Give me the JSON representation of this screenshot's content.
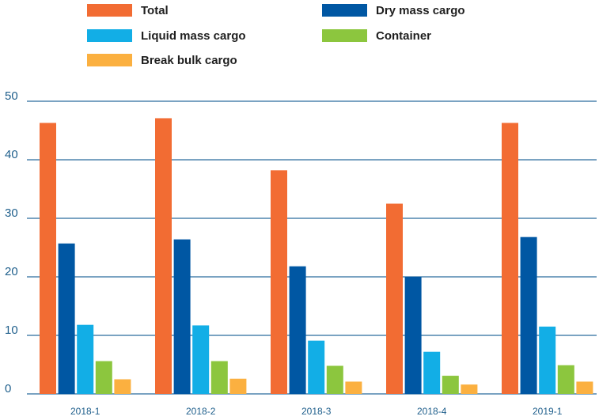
{
  "chart_data": {
    "type": "bar",
    "categories": [
      "2018-1",
      "2018-2",
      "2018-3",
      "2018-4",
      "2019-1"
    ],
    "series": [
      {
        "name": "Total",
        "color": "#f26c33",
        "values": [
          46.3,
          47.1,
          38.2,
          32.5,
          46.3
        ]
      },
      {
        "name": "Dry mass cargo",
        "color": "#0057a3",
        "values": [
          25.7,
          26.4,
          21.8,
          20.0,
          26.8
        ]
      },
      {
        "name": "Liquid mass cargo",
        "color": "#12aee6",
        "values": [
          11.8,
          11.7,
          9.1,
          7.2,
          11.5
        ]
      },
      {
        "name": "Container",
        "color": "#8cc63e",
        "values": [
          5.6,
          5.6,
          4.8,
          3.1,
          4.9
        ]
      },
      {
        "name": "Break bulk cargo",
        "color": "#fbb040",
        "values": [
          2.5,
          2.6,
          2.1,
          1.6,
          2.1
        ]
      }
    ],
    "yticks": [
      0,
      10,
      20,
      30,
      40,
      50
    ],
    "ylim": [
      0,
      50
    ],
    "grid": true,
    "legend_position": "top"
  }
}
